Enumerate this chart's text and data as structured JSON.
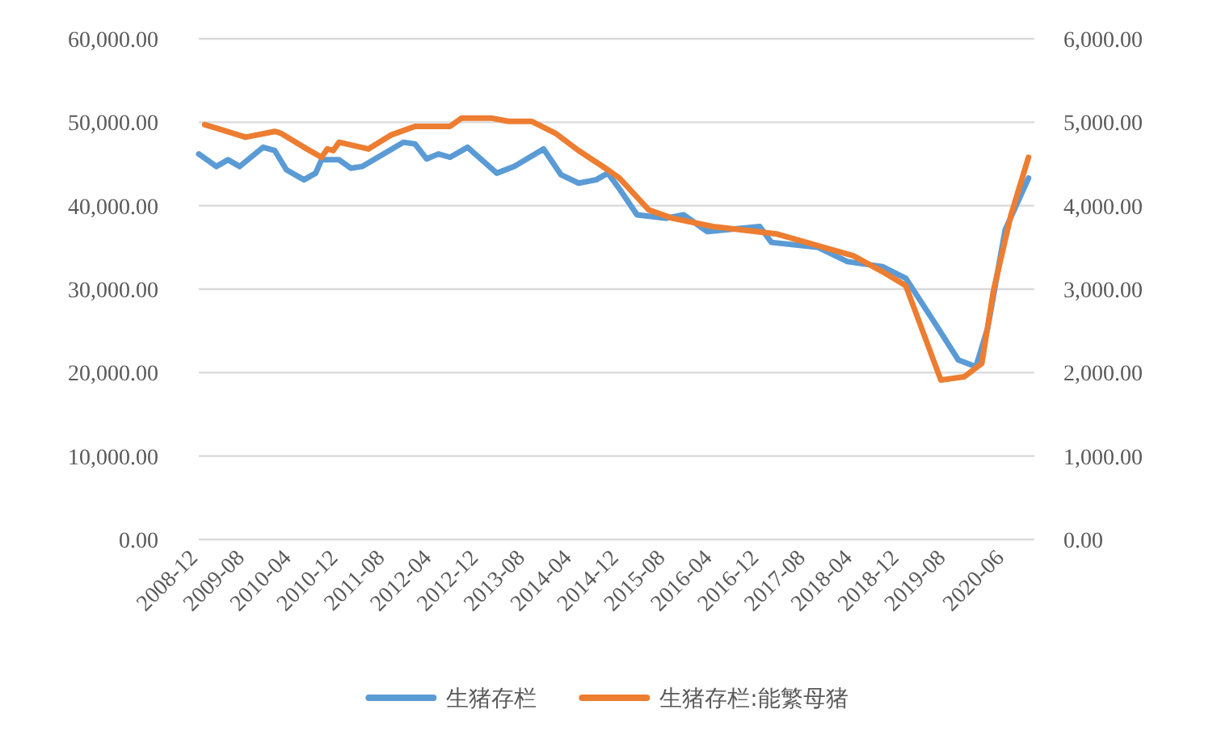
{
  "chart_data": {
    "type": "line",
    "xlim": [
      "2008-12",
      "2020-11"
    ],
    "xticks": [
      "2008-12",
      "2009-08",
      "2010-04",
      "2010-12",
      "2011-08",
      "2012-04",
      "2012-12",
      "2013-08",
      "2014-04",
      "2014-12",
      "2015-08",
      "2016-04",
      "2016-12",
      "2017-08",
      "2018-04",
      "2018-12",
      "2019-08",
      "2020-06"
    ],
    "ylim": [
      0,
      60000
    ],
    "yticks": [
      {
        "value": 0,
        "label": "0.00"
      },
      {
        "value": 10000,
        "label": "10,000.00"
      },
      {
        "value": 20000,
        "label": "20,000.00"
      },
      {
        "value": 30000,
        "label": "30,000.00"
      },
      {
        "value": 40000,
        "label": "40,000.00"
      },
      {
        "value": 50000,
        "label": "50,000.00"
      },
      {
        "value": 60000,
        "label": "60,000.00"
      }
    ],
    "y2lim": [
      0,
      6000
    ],
    "y2ticks": [
      {
        "value": 0,
        "label": "0.00"
      },
      {
        "value": 1000,
        "label": "1,000.00"
      },
      {
        "value": 2000,
        "label": "2,000.00"
      },
      {
        "value": 3000,
        "label": "3,000.00"
      },
      {
        "value": 4000,
        "label": "4,000.00"
      },
      {
        "value": 5000,
        "label": "5,000.00"
      },
      {
        "value": 6000,
        "label": "6,000.00"
      }
    ],
    "grid": "y",
    "legend": "bottom",
    "series": [
      {
        "name": "生猪存栏",
        "color": "#5b9bd5",
        "x": [
          "2008-12",
          "2009-03",
          "2009-05",
          "2009-07",
          "2009-11",
          "2010-01",
          "2010-03",
          "2010-06",
          "2010-08",
          "2010-09",
          "2010-12",
          "2011-02",
          "2011-04",
          "2011-11",
          "2012-01",
          "2012-03",
          "2012-05",
          "2012-07",
          "2012-10",
          "2013-03",
          "2013-06",
          "2013-11",
          "2014-02",
          "2014-05",
          "2014-08",
          "2014-10",
          "2014-12",
          "2015-03",
          "2015-08",
          "2015-11",
          "2016-03",
          "2016-12",
          "2017-02",
          "2017-10",
          "2018-03",
          "2018-09",
          "2019-01",
          "2019-06",
          "2019-10",
          "2020-01",
          "2020-03",
          "2020-06",
          "2020-10"
        ],
        "values": [
          46200,
          44700,
          45500,
          44700,
          47000,
          46600,
          44300,
          43100,
          43900,
          45500,
          45500,
          44500,
          44700,
          47600,
          47400,
          45600,
          46200,
          45800,
          47000,
          43900,
          44700,
          46800,
          43700,
          42700,
          43100,
          43900,
          42000,
          38900,
          38500,
          38900,
          36900,
          37500,
          35600,
          35000,
          33300,
          32700,
          31300,
          25900,
          21500,
          20700,
          25300,
          37100,
          43300
        ]
      },
      {
        "name": "生猪存栏:能繁母猪",
        "color": "#ed7d31",
        "axis": "y2",
        "x": [
          "2009-01",
          "2009-03",
          "2009-08",
          "2010-01",
          "2010-02",
          "2010-06",
          "2010-09",
          "2010-10",
          "2010-11",
          "2010-12",
          "2011-05",
          "2011-09",
          "2012-01",
          "2012-07",
          "2012-09",
          "2013-02",
          "2013-05",
          "2013-09",
          "2014-01",
          "2014-05",
          "2014-10",
          "2014-12",
          "2015-05",
          "2015-09",
          "2016-04",
          "2017-03",
          "2018-04",
          "2018-09",
          "2019-01",
          "2019-07",
          "2019-11",
          "2020-02",
          "2020-04",
          "2020-07",
          "2020-10"
        ],
        "values": [
          4970,
          4930,
          4820,
          4890,
          4870,
          4700,
          4580,
          4680,
          4660,
          4760,
          4680,
          4850,
          4950,
          4950,
          5050,
          5050,
          5010,
          5010,
          4870,
          4660,
          4430,
          4330,
          3950,
          3850,
          3750,
          3660,
          3400,
          3210,
          3040,
          1910,
          1950,
          2110,
          2980,
          3890,
          4580
        ]
      }
    ]
  }
}
